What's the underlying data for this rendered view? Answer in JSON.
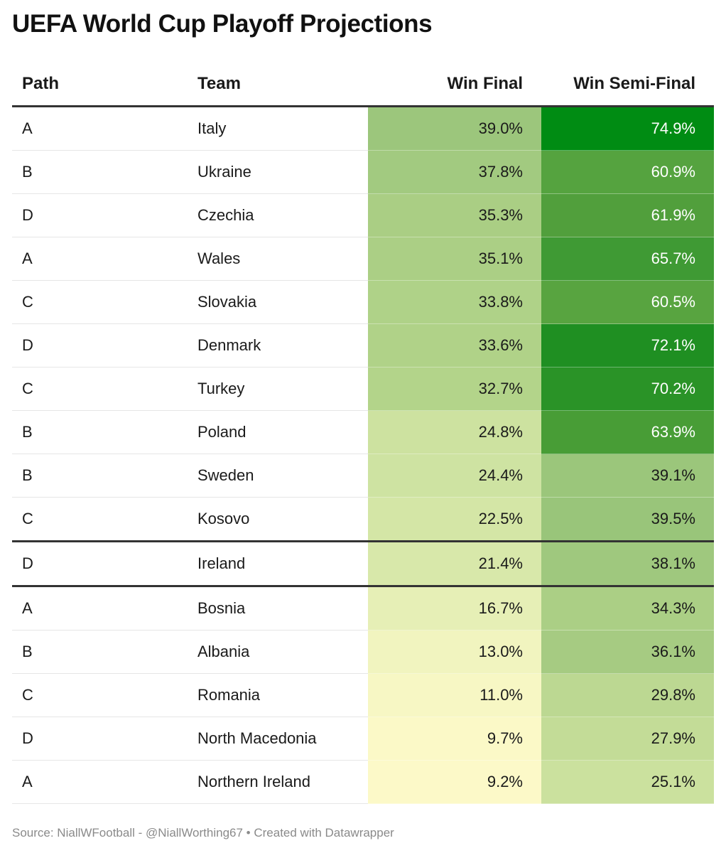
{
  "title": "UEFA World Cup Playoff Projections",
  "source": "Source: NiallWFootball - @NiallWorthing67 • Created with Datawrapper",
  "chart_data": {
    "type": "table",
    "columns": [
      "Path",
      "Team",
      "Win Final",
      "Win Semi-Final"
    ],
    "rows": [
      {
        "path": "A",
        "team": "Italy",
        "win_final": "39.0%",
        "win_semi": "74.9%",
        "final_color": "#9cc67c",
        "semi_color": "#008c13"
      },
      {
        "path": "B",
        "team": "Ukraine",
        "win_final": "37.8%",
        "win_semi": "60.9%",
        "final_color": "#a2ca80",
        "semi_color": "#55a33f"
      },
      {
        "path": "D",
        "team": "Czechia",
        "win_final": "35.3%",
        "win_semi": "61.9%",
        "final_color": "#aace84",
        "semi_color": "#519f3c"
      },
      {
        "path": "A",
        "team": "Wales",
        "win_final": "35.1%",
        "win_semi": "65.7%",
        "final_color": "#abcf85",
        "semi_color": "#3f9a34"
      },
      {
        "path": "C",
        "team": "Slovakia",
        "win_final": "33.8%",
        "win_semi": "60.5%",
        "final_color": "#afd288",
        "semi_color": "#58a440"
      },
      {
        "path": "D",
        "team": "Denmark",
        "win_final": "33.6%",
        "win_semi": "72.1%",
        "final_color": "#b0d288",
        "semi_color": "#1f8f22"
      },
      {
        "path": "C",
        "team": "Turkey",
        "win_final": "32.7%",
        "win_semi": "70.2%",
        "final_color": "#b3d48a",
        "semi_color": "#2a9327"
      },
      {
        "path": "B",
        "team": "Poland",
        "win_final": "24.8%",
        "win_semi": "63.9%",
        "final_color": "#cde2a0",
        "semi_color": "#489d36"
      },
      {
        "path": "B",
        "team": "Sweden",
        "win_final": "24.4%",
        "win_semi": "39.1%",
        "final_color": "#cee3a2",
        "semi_color": "#9bc67b"
      },
      {
        "path": "C",
        "team": "Kosovo",
        "win_final": "22.5%",
        "win_semi": "39.5%",
        "final_color": "#d4e6a6",
        "semi_color": "#99c57a"
      },
      {
        "path": "D",
        "team": "Ireland",
        "win_final": "21.4%",
        "win_semi": "38.1%",
        "final_color": "#d8e8aa",
        "semi_color": "#9fc87e"
      },
      {
        "path": "A",
        "team": "Bosnia",
        "win_final": "16.7%",
        "win_semi": "34.3%",
        "final_color": "#e6efb6",
        "semi_color": "#abcf85"
      },
      {
        "path": "B",
        "team": "Albania",
        "win_final": "13.0%",
        "win_semi": "36.1%",
        "final_color": "#f1f4bf",
        "semi_color": "#a6cb82"
      },
      {
        "path": "C",
        "team": "Romania",
        "win_final": "11.0%",
        "win_semi": "29.8%",
        "final_color": "#f7f7c4",
        "semi_color": "#bcd892"
      },
      {
        "path": "D",
        "team": "North Macedonia",
        "win_final": "9.7%",
        "win_semi": "27.9%",
        "final_color": "#fbf9c7",
        "semi_color": "#c3dc97"
      },
      {
        "path": "A",
        "team": "Northern Ireland",
        "win_final": "9.2%",
        "win_semi": "25.1%",
        "final_color": "#fcf9c8",
        "semi_color": "#cbe19e"
      }
    ]
  }
}
